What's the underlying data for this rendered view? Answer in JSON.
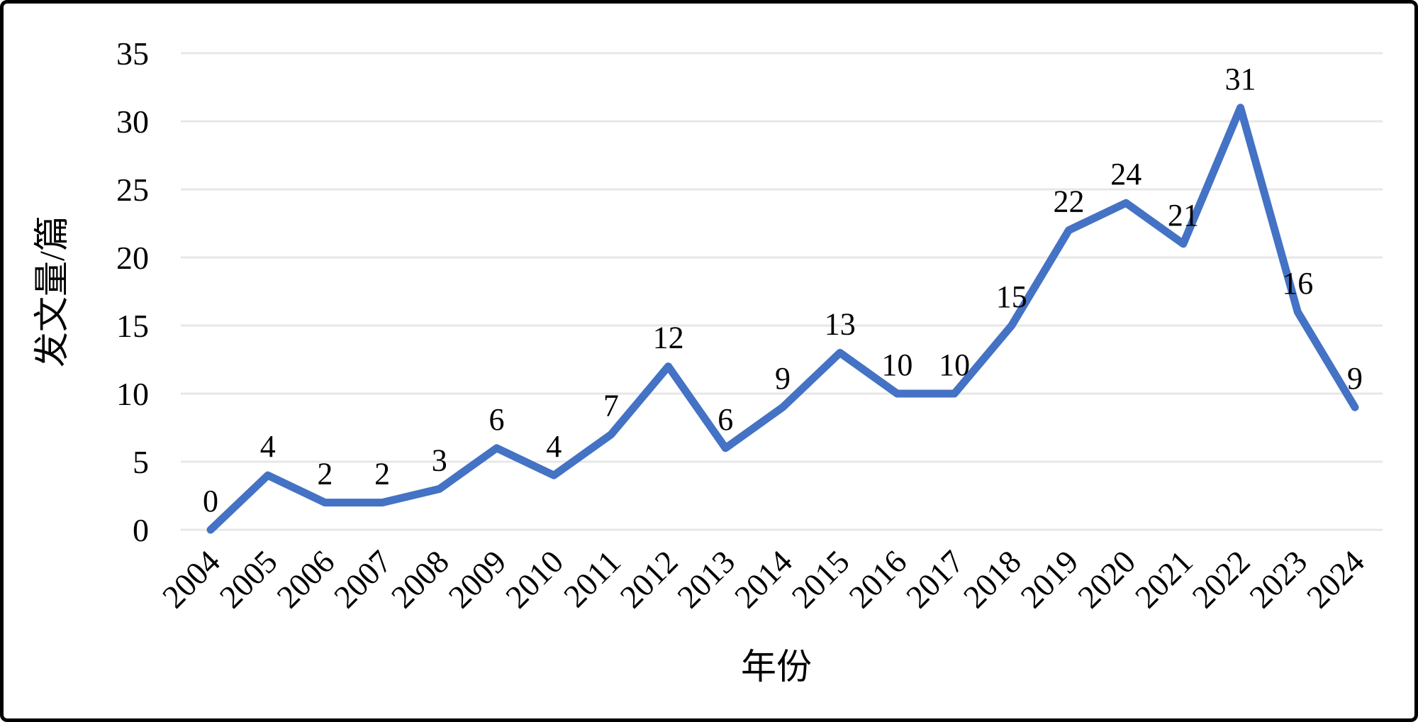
{
  "chart_data": {
    "type": "line",
    "title": "",
    "categories": [
      "2004",
      "2005",
      "2006",
      "2007",
      "2008",
      "2009",
      "2010",
      "2011",
      "2012",
      "2013",
      "2014",
      "2015",
      "2016",
      "2017",
      "2018",
      "2019",
      "2020",
      "2021",
      "2022",
      "2023",
      "2024"
    ],
    "series": [
      {
        "name": "发文量",
        "values": [
          0,
          4,
          2,
          2,
          3,
          6,
          4,
          7,
          12,
          6,
          9,
          13,
          10,
          10,
          15,
          22,
          24,
          21,
          31,
          16,
          9
        ]
      }
    ],
    "data_labels": [
      "0",
      "4",
      "2",
      "2",
      "3",
      "6",
      "4",
      "7",
      "12",
      "6",
      "9",
      "13",
      "10",
      "10",
      "15",
      "22",
      "24",
      "21",
      "31",
      "16",
      "9"
    ],
    "xlabel": "年份",
    "ylabel": "发文量/篇",
    "ylim": [
      0,
      35
    ],
    "yticks": [
      "0",
      "5",
      "10",
      "15",
      "20",
      "25",
      "30",
      "35"
    ],
    "ytick_values": [
      0,
      5,
      10,
      15,
      20,
      25,
      30,
      35
    ],
    "grid": true,
    "legend_position": "none",
    "colors": {
      "line": "#4472C4",
      "gridline": "#E7E7E7",
      "text": "#000000",
      "frame_border": "#000000",
      "background": "#FFFFFF"
    }
  }
}
